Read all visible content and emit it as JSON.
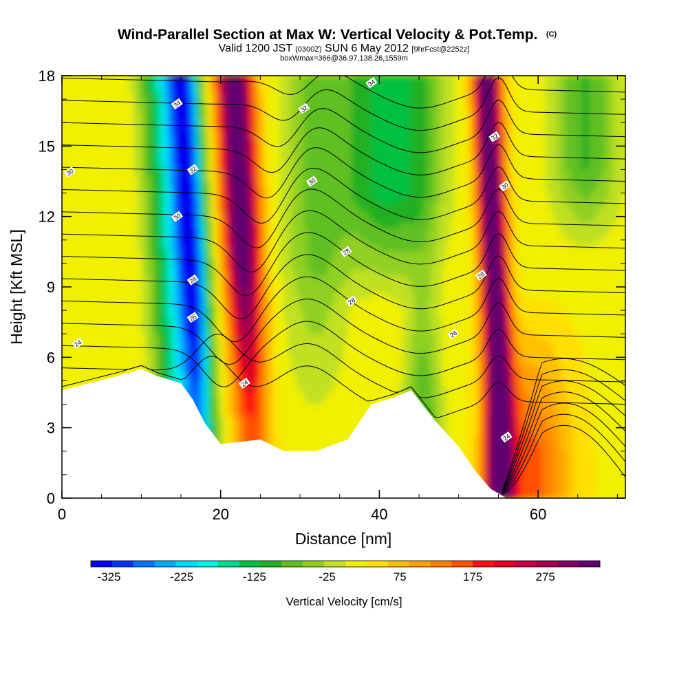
{
  "chart_data": {
    "type": "heatmap",
    "title": "Wind-Parallel Section at Max W: Vertical Velocity & Pot.Temp.",
    "title_mark": "(C)",
    "subtitle_parts": [
      "Valid 1200 JST ",
      "(0300Z)",
      " SUN 6 May 2012 ",
      "[9hrFcst@2252z]"
    ],
    "subtitle2": "boxWmax=366@36.97,138.26,1559m",
    "xlabel": "Distance [nm]",
    "ylabel": "Height [Kft MSL]",
    "xlim": [
      0,
      71
    ],
    "ylim": [
      0,
      18
    ],
    "x_ticks": [
      0,
      20,
      40,
      60
    ],
    "y_ticks": [
      0,
      3,
      6,
      9,
      12,
      15,
      18
    ],
    "colorbar": {
      "label": "Vertical Velocity [cm/s]",
      "min": -350,
      "max": 350,
      "tick_values": [
        -325,
        -225,
        -125,
        -25,
        75,
        175,
        275
      ],
      "tick_labels": [
        "-325",
        "-225",
        "-125",
        "-25",
        "75",
        "175",
        "275"
      ],
      "colors": [
        "#0000f0",
        "#0032ff",
        "#0070ff",
        "#00a8ff",
        "#00d6ff",
        "#00f0e6",
        "#00d890",
        "#00c040",
        "#20b020",
        "#60c020",
        "#90d020",
        "#c0e020",
        "#f0f000",
        "#ffe000",
        "#ffc000",
        "#ffa000",
        "#ff8000",
        "#ff5000",
        "#ff1010",
        "#e00020",
        "#c00040",
        "#a00050",
        "#800060",
        "#600070"
      ]
    },
    "vertical_velocity_bands": [
      {
        "x_center": 16,
        "peak": -350
      },
      {
        "x_center": 23,
        "peak": 340
      },
      {
        "x_center": 40,
        "peak": -130
      },
      {
        "x_center": 47,
        "peak": -170
      },
      {
        "x_center": 55,
        "peak": 350
      },
      {
        "x_center": 65,
        "peak": 120
      }
    ],
    "terrain_height_kft": [
      [
        0,
        4.6
      ],
      [
        3.5,
        4.9
      ],
      [
        7,
        5.2
      ],
      [
        10,
        5.5
      ],
      [
        12,
        5.2
      ],
      [
        15,
        4.9
      ],
      [
        16.5,
        4.2
      ],
      [
        18,
        3.2
      ],
      [
        20,
        2.3
      ],
      [
        25,
        2.5
      ],
      [
        28,
        2.0
      ],
      [
        32,
        2.0
      ],
      [
        36,
        2.5
      ],
      [
        38,
        3.5
      ],
      [
        39,
        4.0
      ],
      [
        42,
        4.3
      ],
      [
        44,
        4.6
      ],
      [
        47,
        3.3
      ],
      [
        50,
        2.2
      ],
      [
        52,
        1.2
      ],
      [
        54,
        0.4
      ],
      [
        56,
        0.0
      ],
      [
        71,
        0.0
      ]
    ],
    "potential_temperature_labels": [
      {
        "text": "34",
        "x": 14.5,
        "y": 16.8
      },
      {
        "text": "34",
        "x": 39.0,
        "y": 17.7
      },
      {
        "text": "32",
        "x": 30.5,
        "y": 16.6
      },
      {
        "text": "32",
        "x": 54.5,
        "y": 15.4
      },
      {
        "text": "32",
        "x": 16.5,
        "y": 14.0
      },
      {
        "text": "30",
        "x": 1.0,
        "y": 13.9
      },
      {
        "text": "30",
        "x": 31.5,
        "y": 13.5
      },
      {
        "text": "30",
        "x": 55.8,
        "y": 13.3
      },
      {
        "text": "30",
        "x": 14.5,
        "y": 12.0
      },
      {
        "text": "28",
        "x": 35.8,
        "y": 10.5
      },
      {
        "text": "28",
        "x": 52.8,
        "y": 9.5
      },
      {
        "text": "28",
        "x": 16.5,
        "y": 9.3
      },
      {
        "text": "26",
        "x": 36.5,
        "y": 8.4
      },
      {
        "text": "26",
        "x": 49.3,
        "y": 7.0
      },
      {
        "text": "26",
        "x": 16.5,
        "y": 7.7
      },
      {
        "text": "24",
        "x": 2.0,
        "y": 6.6
      },
      {
        "text": "24",
        "x": 23.0,
        "y": 4.9
      },
      {
        "text": "24",
        "x": 56.0,
        "y": 2.6
      }
    ]
  }
}
